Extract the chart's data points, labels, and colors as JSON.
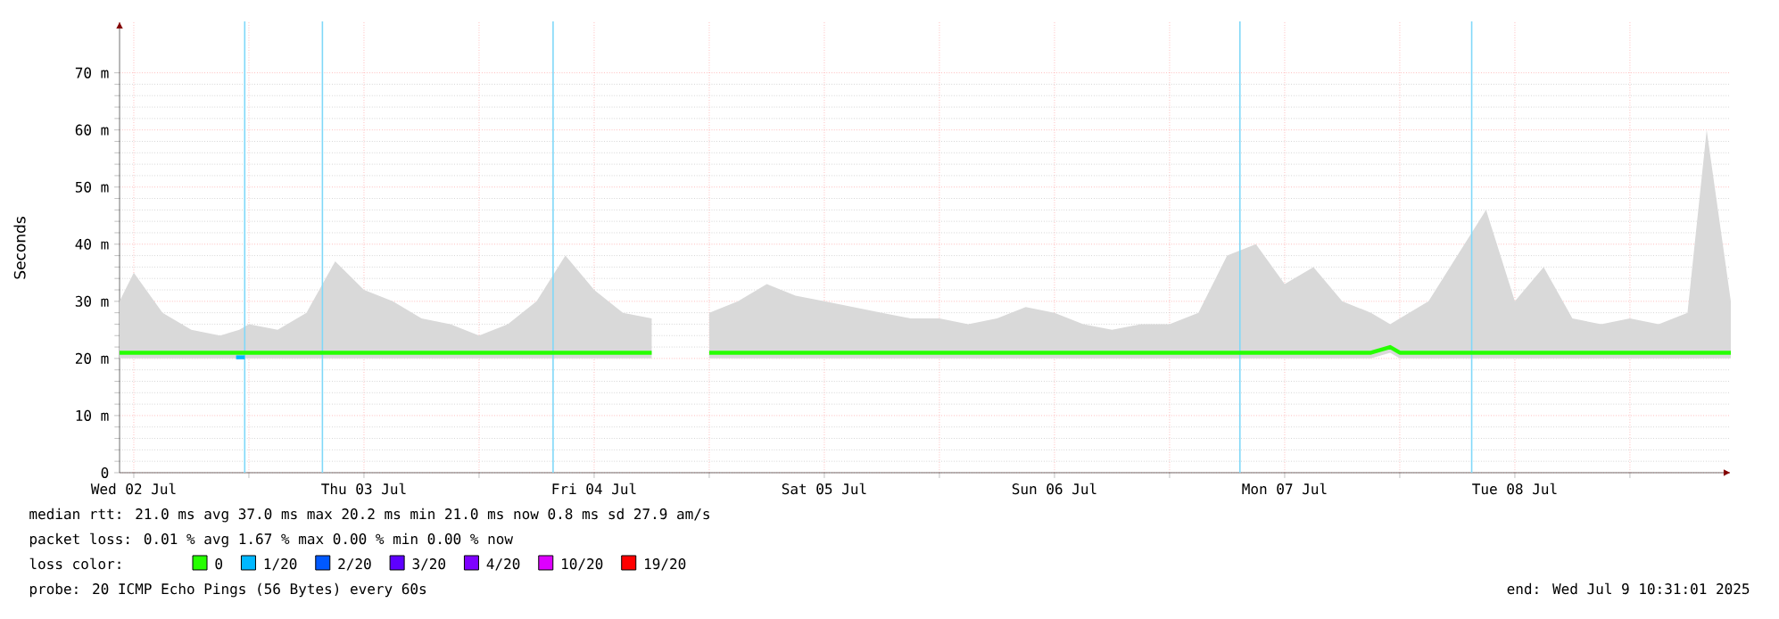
{
  "chart_data": {
    "type": "line",
    "ylabel": "Seconds",
    "legend": "bottom",
    "legend_title": "loss color:",
    "grid": true,
    "xlim": [
      "2025-07-02T10:31",
      "2025-07-09T10:31"
    ],
    "xticks": [
      {
        "value": "2025-07-02T12:00",
        "label": "Wed 02 Jul"
      },
      {
        "value": "2025-07-03T00:00",
        "label": null
      },
      {
        "value": "2025-07-03T12:00",
        "label": "Thu 03 Jul"
      },
      {
        "value": "2025-07-04T00:00",
        "label": null
      },
      {
        "value": "2025-07-04T12:00",
        "label": "Fri 04 Jul"
      },
      {
        "value": "2025-07-05T00:00",
        "label": null
      },
      {
        "value": "2025-07-05T12:00",
        "label": "Sat 05 Jul"
      },
      {
        "value": "2025-07-06T00:00",
        "label": null
      },
      {
        "value": "2025-07-06T12:00",
        "label": "Sun 06 Jul"
      },
      {
        "value": "2025-07-07T00:00",
        "label": null
      },
      {
        "value": "2025-07-07T12:00",
        "label": "Mon 07 Jul"
      },
      {
        "value": "2025-07-08T00:00",
        "label": null
      },
      {
        "value": "2025-07-08T12:00",
        "label": "Tue 08 Jul"
      },
      {
        "value": "2025-07-09T00:00",
        "label": null
      }
    ],
    "ylim": [
      0,
      79
    ],
    "yticks": [
      0,
      {
        "value": 10,
        "label": "10 m"
      },
      {
        "value": 20,
        "label": "20 m"
      },
      {
        "value": 30,
        "label": "30 m"
      },
      {
        "value": 40,
        "label": "40 m"
      },
      {
        "value": 50,
        "label": "50 m"
      },
      {
        "value": 60,
        "label": "60 m"
      },
      {
        "value": 70,
        "label": "70 m"
      }
    ],
    "series": [
      {
        "name": "0",
        "color": "#26ff00",
        "x": [
          "2025-07-02T10:31",
          "2025-07-02T12:00",
          "2025-07-02T15:00",
          "2025-07-02T18:00",
          "2025-07-02T21:00",
          "2025-07-02T23:00",
          "2025-07-03T00:00",
          "2025-07-03T03:00",
          "2025-07-03T06:00",
          "2025-07-03T09:00",
          "2025-07-03T12:00",
          "2025-07-03T15:00",
          "2025-07-03T18:00",
          "2025-07-03T21:00",
          "2025-07-04T00:00",
          "2025-07-04T03:00",
          "2025-07-04T06:00",
          "2025-07-04T09:00",
          "2025-07-04T12:00",
          "2025-07-04T15:00",
          "2025-07-04T18:00",
          "2025-07-04T21:00",
          "2025-07-05T00:00",
          "2025-07-05T03:00",
          "2025-07-05T06:00",
          "2025-07-05T09:00",
          "2025-07-05T12:00",
          "2025-07-05T15:00",
          "2025-07-05T18:00",
          "2025-07-05T21:00",
          "2025-07-06T00:00",
          "2025-07-06T03:00",
          "2025-07-06T06:00",
          "2025-07-06T09:00",
          "2025-07-06T12:00",
          "2025-07-06T15:00",
          "2025-07-06T18:00",
          "2025-07-06T21:00",
          "2025-07-07T00:00",
          "2025-07-07T03:00",
          "2025-07-07T06:00",
          "2025-07-07T09:00",
          "2025-07-07T12:00",
          "2025-07-07T15:00",
          "2025-07-07T18:00",
          "2025-07-07T21:00",
          "2025-07-07T23:00",
          "2025-07-08T00:00",
          "2025-07-08T03:00",
          "2025-07-08T06:00",
          "2025-07-08T09:00",
          "2025-07-08T12:00",
          "2025-07-08T15:00",
          "2025-07-08T18:00",
          "2025-07-08T21:00",
          "2025-07-09T00:00",
          "2025-07-09T03:00",
          "2025-07-09T06:00",
          "2025-07-09T08:00",
          "2025-07-09T10:31"
        ],
        "values": [
          21,
          21,
          21,
          21,
          21,
          21,
          21,
          21,
          21,
          21,
          21,
          21,
          21,
          21,
          21,
          21,
          21,
          21,
          21,
          21,
          21,
          null,
          21,
          21,
          21,
          21,
          21,
          21,
          21,
          21,
          21,
          21,
          21,
          21,
          21,
          21,
          21,
          21,
          21,
          21,
          21,
          21,
          21,
          21,
          21,
          21,
          22,
          21,
          21,
          21,
          21,
          21,
          21,
          21,
          21,
          21,
          21,
          21,
          21,
          21
        ],
        "lower": [
          20,
          20,
          20,
          20,
          20,
          20,
          20,
          20,
          20,
          20,
          20,
          20,
          20,
          20,
          20,
          20,
          20,
          20,
          20,
          20,
          20,
          null,
          20,
          20,
          20,
          20,
          20,
          20,
          20,
          20,
          20,
          20,
          20,
          20,
          20,
          20,
          20,
          20,
          20,
          20,
          20,
          20,
          20,
          20,
          20,
          20,
          21,
          20,
          20,
          20,
          20,
          20,
          20,
          20,
          20,
          20,
          20,
          20,
          20,
          20
        ],
        "upper": [
          30,
          35,
          28,
          25,
          24,
          25,
          26,
          25,
          28,
          37,
          32,
          30,
          27,
          26,
          24,
          26,
          30,
          38,
          32,
          28,
          27,
          null,
          28,
          30,
          33,
          31,
          30,
          29,
          28,
          27,
          27,
          26,
          27,
          29,
          28,
          26,
          25,
          26,
          26,
          28,
          38,
          40,
          33,
          36,
          30,
          28,
          26,
          27,
          30,
          38,
          46,
          30,
          36,
          27,
          26,
          27,
          26,
          28,
          60,
          30
        ]
      },
      {
        "name": "1/20",
        "color": "#00b8ff",
        "x": [
          "2025-07-02T22:40",
          "2025-07-02T23:34"
        ],
        "values": [
          20.2,
          20.2
        ]
      },
      {
        "name": "2/20",
        "color": "#0059ff"
      },
      {
        "name": "3/20",
        "color": "#5e00ff"
      },
      {
        "name": "4/20",
        "color": "#7e00ff"
      },
      {
        "name": "10/20",
        "color": "#dd00ff"
      },
      {
        "name": "19/20",
        "color": "#ff0000"
      }
    ],
    "ref_lines": [
      {
        "axis": "x",
        "value": "2025-07-02T23:34",
        "color": "#80d8f8"
      },
      {
        "axis": "x",
        "value": "2025-07-03T07:40",
        "color": "#80d8f8"
      },
      {
        "axis": "x",
        "value": "2025-07-04T07:43",
        "color": "#80d8f8"
      },
      {
        "axis": "x",
        "value": "2025-07-07T07:20",
        "color": "#80d8f8"
      },
      {
        "axis": "x",
        "value": "2025-07-08T07:30",
        "color": "#80d8f8"
      }
    ],
    "annotations": [
      "median rtt:  21.0 ms avg  37.0 ms max  20.2 ms min  21.0 ms now  0.8 ms sd  27.9   am/s",
      "packet loss: 0.01 % avg  1.67 % max  0.00 % min  0.00 % now",
      "probe:       20 ICMP Echo Pings (56 Bytes) every 60s",
      "end: Wed Jul  9 10:31:01 2025"
    ]
  }
}
